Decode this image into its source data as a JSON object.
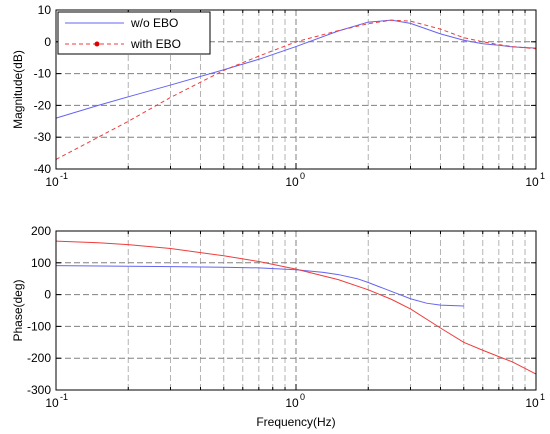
{
  "chart_data": [
    {
      "type": "line",
      "xscale": "log",
      "xlim": [
        0.1,
        10
      ],
      "ylim": [
        -40,
        10
      ],
      "xticks": [
        0.1,
        1,
        10
      ],
      "xtick_labels": [
        "10",
        "10",
        "10"
      ],
      "xtick_exponents": [
        "-1",
        "0",
        "1"
      ],
      "yticks": [
        -40,
        -30,
        -20,
        -10,
        0,
        10
      ],
      "xlabel": "",
      "ylabel": "Magnitude(dB)",
      "grid": true,
      "legend": "top-left",
      "series": [
        {
          "name": "w/o EBO",
          "color": "#6464f0",
          "style": "solid",
          "x": [
            0.1,
            0.15,
            0.2,
            0.3,
            0.5,
            0.7,
            1.0,
            1.5,
            2.0,
            2.5,
            3.0,
            4.0,
            5.0,
            6.0,
            7.0,
            8.0,
            10.0
          ],
          "y": [
            -24,
            -20,
            -17.3,
            -13.6,
            -8.8,
            -5.5,
            -1.5,
            3.4,
            6.2,
            6.8,
            5.8,
            2.5,
            0.5,
            -0.6,
            -1.1,
            -1.6,
            -2.0
          ]
        },
        {
          "name": "with EBO",
          "color": "#f03c3c",
          "style": "dashed",
          "x": [
            0.1,
            0.15,
            0.2,
            0.3,
            0.5,
            0.7,
            1.0,
            1.5,
            2.0,
            2.5,
            3.0,
            4.0,
            5.0,
            6.0,
            7.0,
            8.0,
            10.0
          ],
          "y": [
            -37,
            -30,
            -25,
            -17.5,
            -9.0,
            -4.5,
            0,
            3.5,
            5.7,
            6.8,
            6.5,
            4.0,
            1.3,
            0,
            -0.9,
            -1.5,
            -2.2
          ]
        }
      ]
    },
    {
      "type": "line",
      "xscale": "log",
      "xlim": [
        0.1,
        10
      ],
      "ylim": [
        -300,
        200
      ],
      "xticks": [
        0.1,
        1,
        10
      ],
      "xtick_labels": [
        "10",
        "10",
        "10"
      ],
      "xtick_exponents": [
        "-1",
        "0",
        "1"
      ],
      "yticks": [
        -300,
        -200,
        -100,
        0,
        100,
        200
      ],
      "xlabel": "Frequency(Hz)",
      "ylabel": "Phase(deg)",
      "grid": true,
      "series": [
        {
          "name": "w/o EBO",
          "color": "#6464f0",
          "style": "solid",
          "x": [
            0.1,
            0.2,
            0.3,
            0.5,
            0.7,
            1.0,
            1.3,
            1.5,
            1.8,
            2.0,
            2.5,
            3.0,
            3.5,
            4.0,
            5.0
          ],
          "y": [
            91,
            89,
            88,
            86,
            84,
            78,
            70,
            63,
            50,
            38,
            10,
            -13,
            -27,
            -33,
            -36
          ]
        },
        {
          "name": "with EBO",
          "color": "#f03c3c",
          "style": "solid",
          "x": [
            0.1,
            0.15,
            0.2,
            0.3,
            0.5,
            0.7,
            1.0,
            1.5,
            2.0,
            2.5,
            3.0,
            4.0,
            5.0,
            6.0,
            7.0,
            8.0,
            10.0
          ],
          "y": [
            168,
            163,
            157,
            145,
            122,
            104,
            80,
            47,
            15,
            -15,
            -45,
            -105,
            -150,
            -175,
            -195,
            -212,
            -250
          ]
        }
      ]
    }
  ]
}
